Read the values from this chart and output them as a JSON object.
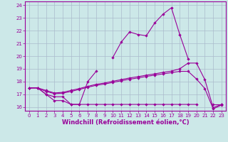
{
  "x": [
    0,
    1,
    2,
    3,
    4,
    5,
    6,
    7,
    8,
    9,
    10,
    11,
    12,
    13,
    14,
    15,
    16,
    17,
    18,
    19,
    20,
    21,
    22,
    23
  ],
  "line1_y": [
    17.5,
    17.5,
    17.0,
    16.5,
    16.5,
    16.2,
    16.2,
    18.0,
    18.8,
    null,
    19.9,
    21.1,
    21.9,
    21.7,
    21.6,
    22.6,
    23.3,
    23.8,
    21.7,
    19.8,
    null,
    null,
    16.2,
    16.2
  ],
  "line2_y": [
    17.5,
    17.5,
    17.0,
    16.8,
    16.8,
    16.2,
    16.2,
    16.2,
    16.2,
    16.2,
    16.2,
    16.2,
    16.2,
    16.2,
    16.2,
    16.2,
    16.2,
    16.2,
    16.2,
    16.2,
    16.2,
    null,
    null,
    null
  ],
  "line3_y": [
    17.5,
    17.5,
    17.3,
    17.1,
    17.15,
    17.3,
    17.45,
    17.62,
    17.78,
    17.88,
    18.02,
    18.15,
    18.28,
    18.38,
    18.5,
    18.6,
    18.72,
    18.82,
    19.0,
    19.45,
    19.45,
    18.15,
    15.95,
    16.2
  ],
  "line4_y": [
    17.5,
    17.5,
    17.22,
    17.05,
    17.08,
    17.22,
    17.38,
    17.55,
    17.7,
    17.8,
    17.93,
    18.06,
    18.18,
    18.28,
    18.4,
    18.5,
    18.6,
    18.7,
    18.8,
    18.8,
    18.2,
    17.45,
    15.85,
    16.15
  ],
  "line_color": "#990099",
  "bg_color": "#cce8e8",
  "grid_color": "#aabbcc",
  "xlabel": "Windchill (Refroidissement éolien,°C)",
  "xlim": [
    -0.5,
    23.5
  ],
  "ylim": [
    15.7,
    24.3
  ],
  "yticks": [
    16,
    17,
    18,
    19,
    20,
    21,
    22,
    23,
    24
  ],
  "xticks": [
    0,
    1,
    2,
    3,
    4,
    5,
    6,
    7,
    8,
    9,
    10,
    11,
    12,
    13,
    14,
    15,
    16,
    17,
    18,
    19,
    20,
    21,
    22,
    23
  ],
  "tick_fontsize": 5.0,
  "xlabel_fontsize": 6.0,
  "marker_size": 2.2,
  "line_width": 0.8
}
